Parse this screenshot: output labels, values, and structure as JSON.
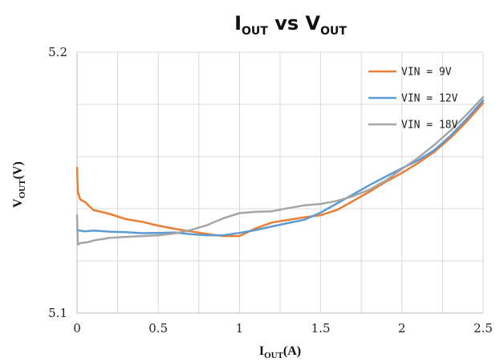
{
  "chart_data": {
    "type": "line",
    "title": {
      "main_1": "I",
      "sub_1": "OUT",
      "mid": " vs V",
      "sub_2": "OUT"
    },
    "xlabel": {
      "main": "I",
      "sub": "OUT",
      "unit": "(A)"
    },
    "ylabel": {
      "main": "V",
      "sub": "OUT",
      "unit": "(V)"
    },
    "xlim": [
      0,
      2.5
    ],
    "ylim": [
      5.1,
      5.2
    ],
    "x_ticks": [
      {
        "v": 0,
        "label": "0"
      },
      {
        "v": 0.5,
        "label": "0.5"
      },
      {
        "v": 1,
        "label": "1"
      },
      {
        "v": 1.5,
        "label": "1.5"
      },
      {
        "v": 2,
        "label": "2"
      },
      {
        "v": 2.5,
        "label": "2.5"
      }
    ],
    "y_ticks": [
      {
        "v": 5.1,
        "label": "5.1"
      },
      {
        "v": 5.2,
        "label": "5.2"
      }
    ],
    "x_grid": [
      0.25,
      0.5,
      0.75,
      1,
      1.25,
      1.5,
      1.75,
      2,
      2.25,
      2.5
    ],
    "y_grid": [
      5.12,
      5.14,
      5.16,
      5.18,
      5.2
    ],
    "grid": true,
    "legend_position": "top-right",
    "series": [
      {
        "name": "VIN = 9V",
        "color": "#ED7D31",
        "points": [
          [
            0,
            5.1557
          ],
          [
            0.005,
            5.1465
          ],
          [
            0.02,
            5.1435
          ],
          [
            0.05,
            5.1425
          ],
          [
            0.1,
            5.1395
          ],
          [
            0.2,
            5.138
          ],
          [
            0.3,
            5.136
          ],
          [
            0.4,
            5.135
          ],
          [
            0.5,
            5.1335
          ],
          [
            0.6,
            5.1323
          ],
          [
            0.7,
            5.1313
          ],
          [
            0.8,
            5.1303
          ],
          [
            0.9,
            5.1295
          ],
          [
            1.0,
            5.1295
          ],
          [
            1.1,
            5.1325
          ],
          [
            1.2,
            5.1347
          ],
          [
            1.3,
            5.1357
          ],
          [
            1.4,
            5.1367
          ],
          [
            1.5,
            5.1375
          ],
          [
            1.6,
            5.1395
          ],
          [
            1.7,
            5.143
          ],
          [
            1.8,
            5.1465
          ],
          [
            1.9,
            5.1503
          ],
          [
            2.0,
            5.1537
          ],
          [
            2.1,
            5.1575
          ],
          [
            2.2,
            5.1618
          ],
          [
            2.3,
            5.1672
          ],
          [
            2.4,
            5.1735
          ],
          [
            2.5,
            5.1805
          ]
        ]
      },
      {
        "name": "VIN = 12V",
        "color": "#5B9BD5",
        "points": [
          [
            0,
            5.1318
          ],
          [
            0.05,
            5.1313
          ],
          [
            0.1,
            5.1316
          ],
          [
            0.2,
            5.1312
          ],
          [
            0.3,
            5.131
          ],
          [
            0.4,
            5.1306
          ],
          [
            0.5,
            5.1307
          ],
          [
            0.6,
            5.1309
          ],
          [
            0.7,
            5.1302
          ],
          [
            0.8,
            5.1298
          ],
          [
            0.9,
            5.1298
          ],
          [
            1.0,
            5.1307
          ],
          [
            1.1,
            5.1318
          ],
          [
            1.2,
            5.1332
          ],
          [
            1.3,
            5.1345
          ],
          [
            1.4,
            5.1358
          ],
          [
            1.5,
            5.1385
          ],
          [
            1.6,
            5.142
          ],
          [
            1.7,
            5.1455
          ],
          [
            1.8,
            5.149
          ],
          [
            1.9,
            5.1523
          ],
          [
            2.0,
            5.1555
          ],
          [
            2.1,
            5.1585
          ],
          [
            2.2,
            5.1625
          ],
          [
            2.3,
            5.168
          ],
          [
            2.4,
            5.1745
          ],
          [
            2.5,
            5.1815
          ]
        ]
      },
      {
        "name": "VIN = 18V",
        "color": "#A5A5A5",
        "points": [
          [
            0,
            5.1375
          ],
          [
            0.005,
            5.1262
          ],
          [
            0.02,
            5.1268
          ],
          [
            0.07,
            5.1272
          ],
          [
            0.1,
            5.1278
          ],
          [
            0.2,
            5.1288
          ],
          [
            0.3,
            5.1292
          ],
          [
            0.4,
            5.1295
          ],
          [
            0.5,
            5.1298
          ],
          [
            0.6,
            5.1305
          ],
          [
            0.7,
            5.1318
          ],
          [
            0.8,
            5.1337
          ],
          [
            0.9,
            5.1363
          ],
          [
            1.0,
            5.1383
          ],
          [
            1.1,
            5.1388
          ],
          [
            1.2,
            5.139
          ],
          [
            1.3,
            5.1402
          ],
          [
            1.4,
            5.1413
          ],
          [
            1.5,
            5.1418
          ],
          [
            1.6,
            5.143
          ],
          [
            1.7,
            5.1448
          ],
          [
            1.8,
            5.1473
          ],
          [
            1.9,
            5.1508
          ],
          [
            2.0,
            5.1552
          ],
          [
            2.1,
            5.1595
          ],
          [
            2.2,
            5.1645
          ],
          [
            2.3,
            5.17
          ],
          [
            2.4,
            5.1762
          ],
          [
            2.5,
            5.1828
          ]
        ]
      }
    ]
  }
}
